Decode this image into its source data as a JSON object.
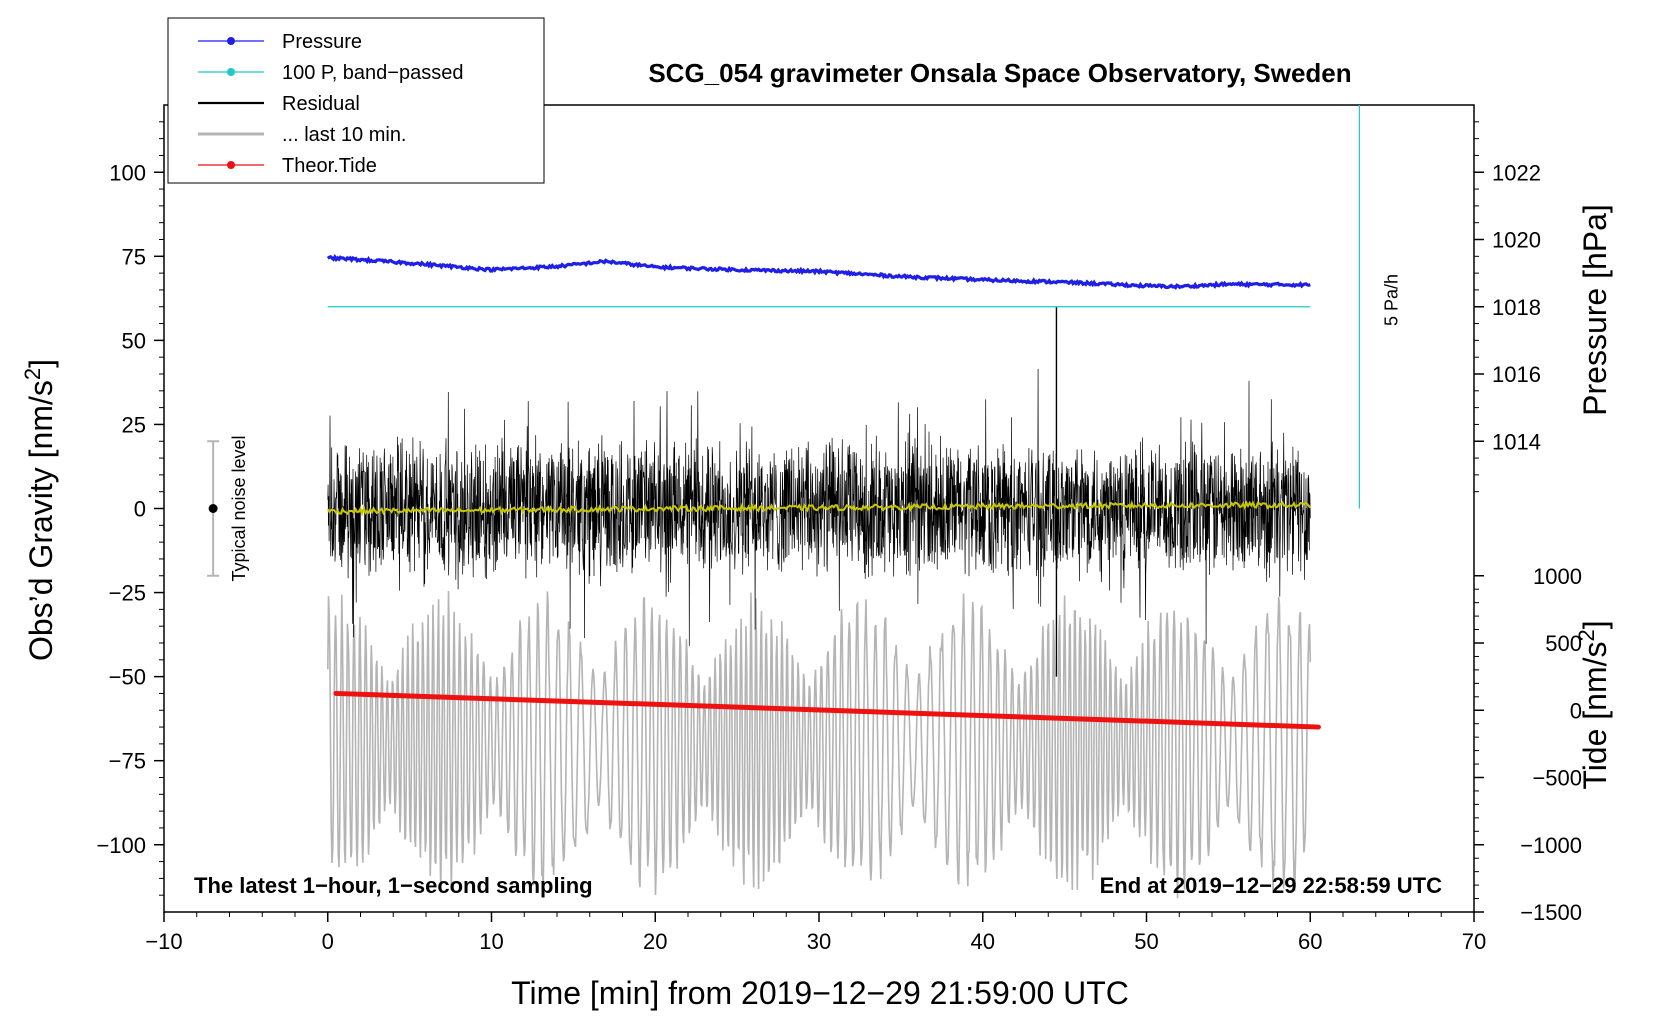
{
  "chart_data": {
    "type": "line",
    "title": "SCG_054 gravimeter Onsala Space Observatory, Sweden",
    "xlabel": "Time [min] from 2019−12−29 21:59:00 UTC",
    "ylabel_left_main": "Obs’d Gravity [nm/s",
    "ylabel_left_sup": "2",
    "ylabel_left_end": "]",
    "ylabel_right_pressure": "Pressure [hPa]",
    "ylabel_right_tide_main": "Tide [nm/s",
    "ylabel_right_tide_sup": "2",
    "ylabel_right_tide_end": "]",
    "xlim": [
      -10,
      70
    ],
    "ylim": [
      -120,
      120
    ],
    "x_ticks": [
      -10,
      0,
      10,
      20,
      30,
      40,
      50,
      60,
      70
    ],
    "x_tick_labels": [
      "−10",
      "0",
      "10",
      "20",
      "30",
      "40",
      "50",
      "60",
      "70"
    ],
    "y_ticks": [
      100,
      75,
      50,
      25,
      0,
      -25,
      -50,
      -75,
      -100
    ],
    "y_tick_labels": [
      "100",
      "75",
      "50",
      "25",
      "0",
      "−25",
      "−50",
      "−75",
      "−100"
    ],
    "pressure_axis": {
      "ticks": [
        1022,
        1020,
        1018,
        1016,
        1014
      ],
      "tick_labels": [
        "1022",
        "1020",
        "1018",
        "1016",
        "1014"
      ],
      "gravity_at_1018": 60,
      "gravity_per_hpa": 10
    },
    "tide_axis": {
      "ticks": [
        1000,
        500,
        0,
        -500,
        -1000,
        -1500
      ],
      "tick_labels": [
        "1000",
        "500",
        "0",
        "−500",
        "−1000",
        "−1500"
      ],
      "gravity_at_0": -60,
      "gravity_per_unit": 0.04
    },
    "legend": {
      "position": "top-left",
      "entries": [
        {
          "label": "Pressure",
          "color": "#1f1fe8",
          "marker": true
        },
        {
          "label": "100 P, band−passed",
          "color": "#20c8c8",
          "marker": true
        },
        {
          "label": "Residual",
          "color": "#000000",
          "marker": false
        },
        {
          "label": "... last 10 min.",
          "color": "#b4b4b4",
          "marker": false
        },
        {
          "label": "Theor.Tide",
          "color": "#ee1111",
          "marker": true
        }
      ]
    },
    "series": [
      {
        "name": "Pressure",
        "color": "#1f1fe8",
        "x": [
          0,
          1,
          5,
          10,
          14,
          17,
          20,
          25,
          30,
          35,
          40,
          45,
          50,
          52,
          55,
          60
        ],
        "y": [
          74.5,
          74.3,
          73.0,
          71.0,
          72.0,
          73.5,
          71.8,
          71.0,
          70.5,
          69.0,
          68.0,
          67.3,
          66.2,
          66.0,
          66.7,
          66.5
        ]
      },
      {
        "name": "100 P, band−passed",
        "color": "#20c8c8",
        "x": [
          0,
          60
        ],
        "y": [
          60,
          60
        ]
      },
      {
        "name": "Residual",
        "color": "#000000",
        "x_range": [
          0,
          60
        ],
        "amplitude_typical": 20,
        "amplitude_max": 45,
        "spikes": [
          {
            "x": 44.5,
            "y": 60
          },
          {
            "x": 44.5,
            "y": -50
          }
        ]
      },
      {
        "name": "Residual mean",
        "color": "#c8c800",
        "x": [
          0,
          10,
          20,
          30,
          40,
          50,
          60
        ],
        "y": [
          -0.8,
          -0.5,
          0.0,
          0.2,
          0.6,
          0.9,
          1.0
        ]
      },
      {
        "name": "... last 10 min.",
        "color": "#b4b4b4",
        "x_range": [
          0,
          60
        ],
        "center": -70,
        "amplitude": 40
      },
      {
        "name": "Theor.Tide",
        "color": "#ee1111",
        "x": [
          0.5,
          60.5
        ],
        "y": [
          -55,
          -65
        ]
      }
    ],
    "cyan_scale_bar": {
      "x": 63,
      "y_top": 120,
      "y_bottom": 0,
      "label": "5 Pa/h"
    },
    "noise_bar": {
      "x": -7,
      "y_center": 0,
      "y_top": 20,
      "y_bottom": -20,
      "label": "Typical noise level"
    },
    "annotations": {
      "bottom_left": "The latest 1−hour, 1−second sampling",
      "bottom_right": "End at 2019−12−29 22:58:59 UTC"
    }
  }
}
